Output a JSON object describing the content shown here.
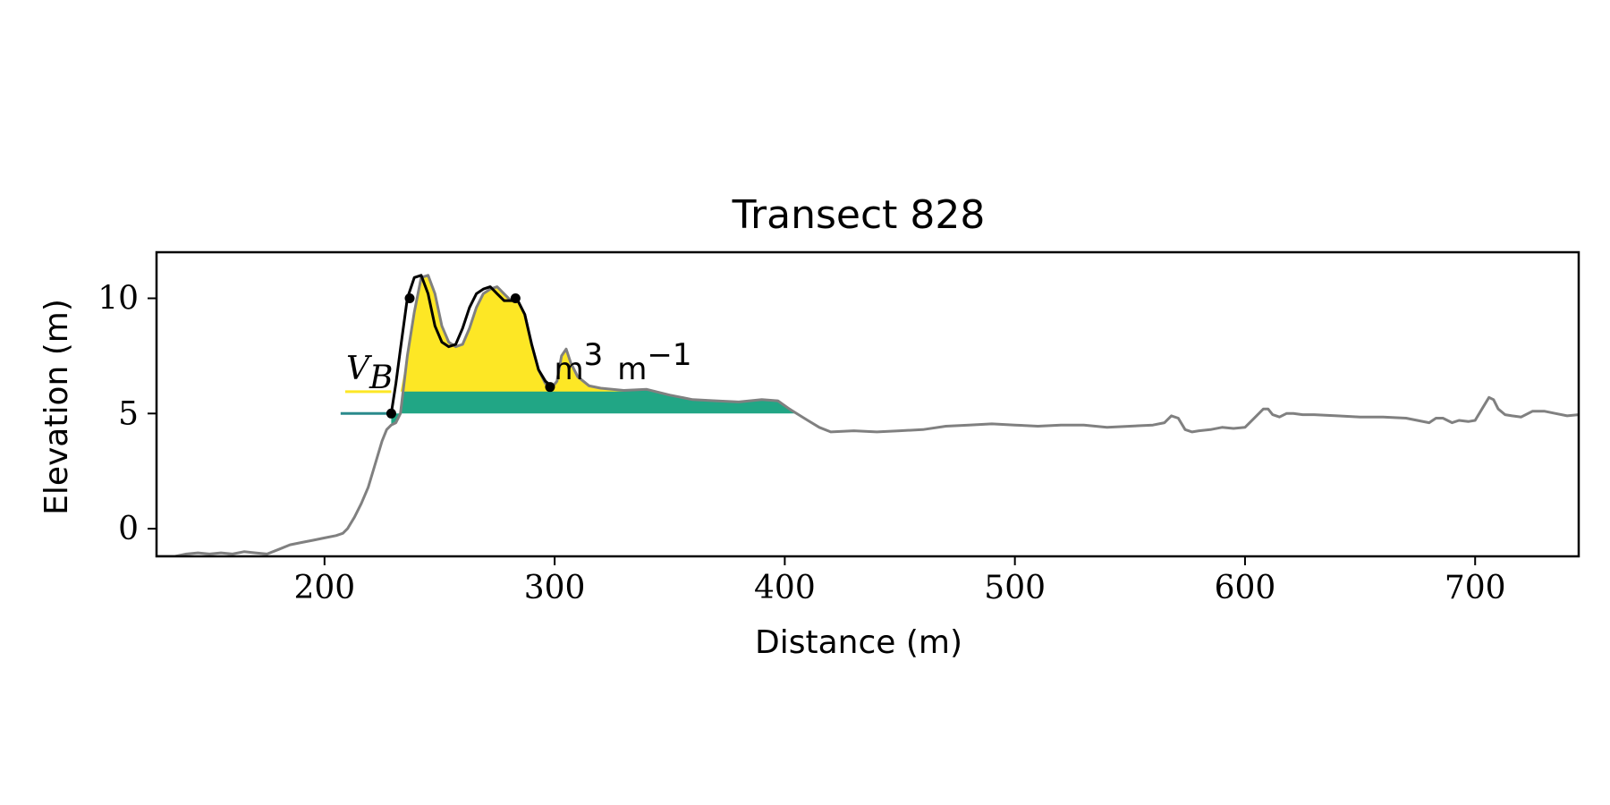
{
  "chart_data": {
    "type": "area",
    "title": "Transect 828",
    "xlabel": "Distance (m)",
    "ylabel": "Elevation (m)",
    "xlim": [
      127,
      745
    ],
    "ylim": [
      -1.2,
      12.0
    ],
    "xticks": [
      200,
      300,
      400,
      500,
      600,
      700
    ],
    "yticks": [
      0,
      5,
      10
    ],
    "grid": false,
    "annotation": {
      "symbol": "V",
      "subscript": "B",
      "unit": "m",
      "unit_exp": "3",
      "unit_tail": "m",
      "unit_tail_exp": "−1"
    },
    "colors": {
      "profile": "#808080",
      "dune": "#000000",
      "dune_fill": "#fde725",
      "base_fill": "#21a685",
      "base_line": "#2a8a8c"
    },
    "profile": {
      "x": [
        127,
        135,
        140,
        145,
        150,
        155,
        160,
        165,
        170,
        175,
        180,
        185,
        190,
        195,
        200,
        205,
        208,
        210,
        213,
        216,
        219,
        222,
        225,
        227,
        229,
        231,
        233,
        236,
        239,
        242,
        245,
        248,
        251,
        254,
        257,
        260,
        263,
        266,
        269,
        272,
        275,
        278,
        281,
        284,
        287,
        290,
        293,
        296,
        299,
        301,
        303,
        305,
        307,
        310,
        315,
        320,
        330,
        340,
        350,
        360,
        370,
        380,
        390,
        397,
        402,
        406,
        410,
        415,
        420,
        430,
        440,
        450,
        460,
        470,
        480,
        490,
        500,
        510,
        520,
        530,
        540,
        550,
        560,
        565,
        568,
        571,
        574,
        577,
        580,
        585,
        590,
        595,
        600,
        605,
        608,
        610,
        612,
        615,
        618,
        621,
        625,
        630,
        640,
        650,
        660,
        670,
        680,
        683,
        686,
        690,
        693,
        697,
        700,
        703,
        706,
        708,
        710,
        713,
        716,
        720,
        725,
        730,
        735,
        740,
        745
      ],
      "y": [
        -1.2,
        -1.2,
        -1.1,
        -1.05,
        -1.1,
        -1.05,
        -1.1,
        -1.0,
        -1.05,
        -1.1,
        -0.9,
        -0.7,
        -0.6,
        -0.5,
        -0.4,
        -0.3,
        -0.2,
        0.0,
        0.5,
        1.1,
        1.8,
        2.8,
        3.8,
        4.3,
        4.5,
        4.6,
        5.0,
        7.5,
        9.4,
        10.9,
        11.0,
        10.2,
        8.8,
        8.1,
        7.9,
        8.0,
        8.7,
        9.6,
        10.2,
        10.4,
        10.5,
        10.2,
        9.9,
        9.9,
        9.3,
        8.0,
        6.9,
        6.3,
        6.15,
        6.4,
        7.5,
        7.8,
        7.2,
        6.6,
        6.2,
        6.1,
        6.0,
        6.05,
        5.8,
        5.6,
        5.55,
        5.5,
        5.6,
        5.55,
        5.2,
        4.95,
        4.7,
        4.4,
        4.2,
        4.25,
        4.2,
        4.25,
        4.3,
        4.45,
        4.5,
        4.55,
        4.5,
        4.45,
        4.5,
        4.5,
        4.4,
        4.45,
        4.5,
        4.6,
        4.9,
        4.8,
        4.3,
        4.2,
        4.25,
        4.3,
        4.4,
        4.35,
        4.4,
        4.9,
        5.2,
        5.2,
        4.95,
        4.85,
        5.0,
        5.0,
        4.95,
        4.95,
        4.9,
        4.85,
        4.85,
        4.8,
        4.6,
        4.8,
        4.8,
        4.6,
        4.7,
        4.65,
        4.7,
        5.2,
        5.7,
        5.6,
        5.2,
        4.95,
        4.9,
        4.85,
        5.1,
        5.1,
        5.0,
        4.9,
        4.95
      ]
    },
    "dune_crest": {
      "x": [
        229,
        231,
        233,
        236,
        239,
        242,
        245,
        248,
        251,
        254,
        257,
        260,
        263,
        266,
        269,
        272,
        275,
        278,
        281,
        284,
        287,
        290,
        293,
        296,
        299
      ],
      "y": [
        5.0,
        6.3,
        7.8,
        10.0,
        10.9,
        11.0,
        10.2,
        8.8,
        8.1,
        7.9,
        8.0,
        8.7,
        9.6,
        10.2,
        10.4,
        10.5,
        10.2,
        9.9,
        9.9,
        9.9,
        9.3,
        8.0,
        6.9,
        6.4,
        6.15
      ]
    },
    "dune_markers": {
      "x": [
        229,
        237,
        283,
        298
      ],
      "y": [
        5.0,
        10.0,
        10.0,
        6.15
      ]
    },
    "dune_fill_level": 5.95,
    "base_fill_level": 5.0,
    "base_line_x": [
      207,
      229
    ],
    "dune_line_x": [
      209,
      229
    ],
    "dune_fill_end_x": 330,
    "base_fill_end_x": 406
  }
}
